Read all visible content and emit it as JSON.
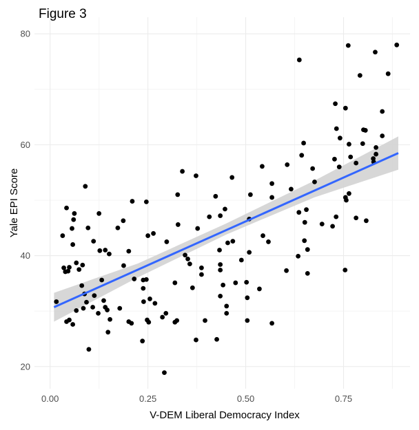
{
  "chart_data": {
    "type": "scatter",
    "title": "Figure 3",
    "xlabel": "V-DEM Liberal Democracy Index",
    "ylabel": "Yale EPI Score",
    "xlim": [
      -0.04,
      0.92
    ],
    "ylim": [
      16,
      83
    ],
    "xticks": [
      0.0,
      0.25,
      0.5,
      0.75
    ],
    "xtick_labels": [
      "0.00",
      "0.25",
      "0.50",
      "0.75"
    ],
    "yticks": [
      20,
      40,
      60,
      80
    ],
    "ytick_labels": [
      "20",
      "40",
      "60",
      "80"
    ],
    "grid": true,
    "legend": "none",
    "colors": {
      "points": "#000000",
      "fit_line": "#3366FF",
      "confidence_band": "#D3D3D3",
      "grid": "#EBEBEB"
    },
    "points": [
      [
        0.09,
        52.5
      ],
      [
        0.042,
        48.6
      ],
      [
        0.062,
        47.6
      ],
      [
        0.06,
        46.5
      ],
      [
        0.056,
        44.9
      ],
      [
        0.032,
        43.6
      ],
      [
        0.058,
        42.0
      ],
      [
        0.097,
        45.0
      ],
      [
        0.125,
        47.6
      ],
      [
        0.111,
        42.6
      ],
      [
        0.127,
        40.9
      ],
      [
        0.141,
        41.0
      ],
      [
        0.151,
        40.3
      ],
      [
        0.21,
        49.8
      ],
      [
        0.246,
        49.7
      ],
      [
        0.187,
        46.3
      ],
      [
        0.173,
        45.0
      ],
      [
        0.201,
        40.8
      ],
      [
        0.25,
        43.6
      ],
      [
        0.264,
        44.0
      ],
      [
        0.298,
        42.5
      ],
      [
        0.035,
        37.8
      ],
      [
        0.039,
        37.1
      ],
      [
        0.046,
        37.2
      ],
      [
        0.049,
        37.9
      ],
      [
        0.067,
        38.7
      ],
      [
        0.074,
        37.5
      ],
      [
        0.083,
        38.3
      ],
      [
        0.188,
        38.2
      ],
      [
        0.132,
        35.6
      ],
      [
        0.215,
        35.8
      ],
      [
        0.238,
        35.6
      ],
      [
        0.246,
        35.7
      ],
      [
        0.081,
        34.6
      ],
      [
        0.088,
        33.1
      ],
      [
        0.113,
        32.8
      ],
      [
        0.238,
        34.1
      ],
      [
        0.016,
        31.7
      ],
      [
        0.093,
        31.6
      ],
      [
        0.137,
        31.9
      ],
      [
        0.239,
        31.7
      ],
      [
        0.255,
        32.2
      ],
      [
        0.268,
        31.4
      ],
      [
        0.067,
        30.1
      ],
      [
        0.085,
        30.5
      ],
      [
        0.109,
        30.7
      ],
      [
        0.141,
        30.7
      ],
      [
        0.146,
        30.2
      ],
      [
        0.178,
        30.5
      ],
      [
        0.123,
        29.6
      ],
      [
        0.296,
        29.6
      ],
      [
        0.287,
        28.9
      ],
      [
        0.042,
        28.1
      ],
      [
        0.049,
        28.4
      ],
      [
        0.058,
        27.6
      ],
      [
        0.153,
        28.5
      ],
      [
        0.201,
        28.1
      ],
      [
        0.208,
        27.8
      ],
      [
        0.248,
        28.4
      ],
      [
        0.252,
        28.0
      ],
      [
        0.148,
        26.2
      ],
      [
        0.236,
        24.6
      ],
      [
        0.099,
        23.1
      ],
      [
        0.292,
        18.9
      ],
      [
        0.338,
        55.2
      ],
      [
        0.373,
        54.4
      ],
      [
        0.465,
        54.1
      ],
      [
        0.542,
        56.1
      ],
      [
        0.606,
        56.4
      ],
      [
        0.567,
        53.0
      ],
      [
        0.326,
        51.0
      ],
      [
        0.423,
        50.7
      ],
      [
        0.512,
        51.0
      ],
      [
        0.567,
        50.5
      ],
      [
        0.616,
        52.0
      ],
      [
        0.447,
        48.4
      ],
      [
        0.435,
        47.2
      ],
      [
        0.407,
        47.0
      ],
      [
        0.327,
        45.6
      ],
      [
        0.377,
        44.9
      ],
      [
        0.509,
        46.6
      ],
      [
        0.636,
        47.8
      ],
      [
        0.454,
        42.3
      ],
      [
        0.467,
        42.6
      ],
      [
        0.544,
        43.6
      ],
      [
        0.558,
        42.5
      ],
      [
        0.433,
        41.0
      ],
      [
        0.509,
        40.6
      ],
      [
        0.345,
        40.1
      ],
      [
        0.352,
        39.4
      ],
      [
        0.357,
        38.5
      ],
      [
        0.634,
        39.9
      ],
      [
        0.489,
        39.2
      ],
      [
        0.387,
        37.8
      ],
      [
        0.387,
        36.6
      ],
      [
        0.435,
        38.4
      ],
      [
        0.435,
        37.4
      ],
      [
        0.604,
        37.3
      ],
      [
        0.319,
        35.1
      ],
      [
        0.364,
        34.2
      ],
      [
        0.442,
        34.7
      ],
      [
        0.474,
        35.1
      ],
      [
        0.502,
        35.2
      ],
      [
        0.535,
        34.0
      ],
      [
        0.435,
        32.7
      ],
      [
        0.504,
        32.4
      ],
      [
        0.451,
        30.9
      ],
      [
        0.451,
        29.6
      ],
      [
        0.319,
        28.0
      ],
      [
        0.324,
        28.3
      ],
      [
        0.396,
        28.3
      ],
      [
        0.504,
        28.3
      ],
      [
        0.567,
        27.8
      ],
      [
        0.373,
        24.8
      ],
      [
        0.426,
        24.9
      ],
      [
        0.637,
        75.3
      ],
      [
        0.762,
        77.9
      ],
      [
        0.831,
        76.7
      ],
      [
        0.886,
        78.0
      ],
      [
        0.792,
        72.5
      ],
      [
        0.864,
        72.8
      ],
      [
        0.729,
        67.4
      ],
      [
        0.755,
        66.6
      ],
      [
        0.849,
        66.0
      ],
      [
        0.732,
        62.9
      ],
      [
        0.801,
        62.7
      ],
      [
        0.806,
        62.6
      ],
      [
        0.741,
        61.2
      ],
      [
        0.849,
        61.6
      ],
      [
        0.648,
        60.3
      ],
      [
        0.764,
        60.1
      ],
      [
        0.799,
        60.2
      ],
      [
        0.833,
        59.5
      ],
      [
        0.833,
        58.3
      ],
      [
        0.643,
        58.1
      ],
      [
        0.768,
        57.8
      ],
      [
        0.727,
        57.4
      ],
      [
        0.826,
        57.5
      ],
      [
        0.782,
        56.7
      ],
      [
        0.739,
        56.0
      ],
      [
        0.827,
        56.9
      ],
      [
        0.671,
        55.7
      ],
      [
        0.676,
        53.3
      ],
      [
        0.764,
        51.2
      ],
      [
        0.755,
        50.5
      ],
      [
        0.757,
        50.0
      ],
      [
        0.655,
        48.3
      ],
      [
        0.651,
        46.0
      ],
      [
        0.695,
        45.7
      ],
      [
        0.722,
        45.3
      ],
      [
        0.731,
        47.0
      ],
      [
        0.782,
        46.8
      ],
      [
        0.808,
        46.3
      ],
      [
        0.65,
        42.7
      ],
      [
        0.658,
        41.1
      ],
      [
        0.658,
        36.8
      ],
      [
        0.754,
        37.4
      ]
    ],
    "fit": {
      "method": "linear",
      "x": [
        0.01,
        0.89
      ],
      "y": [
        30.7,
        58.5
      ],
      "band_x": [
        0.01,
        0.225,
        0.45,
        0.675,
        0.89
      ],
      "band_lower": [
        28.1,
        36.1,
        43.8,
        50.5,
        55.5
      ],
      "band_upper": [
        33.3,
        38.6,
        45.8,
        53.5,
        61.5
      ]
    }
  }
}
